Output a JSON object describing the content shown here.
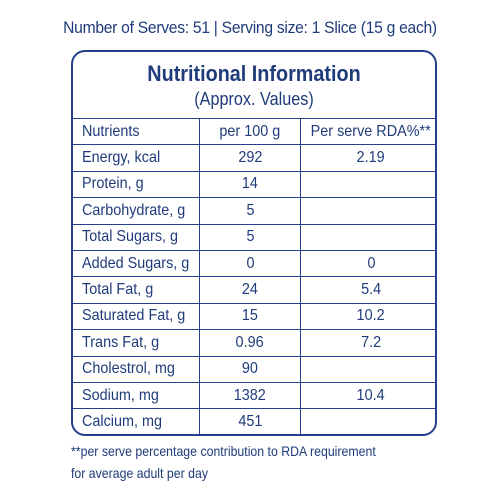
{
  "serves_line": "Number of Serves: 51 | Serving size: 1 Slice (15 g each)",
  "panel": {
    "title": "Nutritional Information",
    "subtitle": "(Approx. Values)"
  },
  "table": {
    "headers": [
      "Nutrients",
      "per 100 g",
      "Per serve RDA%**"
    ],
    "rows": [
      {
        "nutrient": "Energy, kcal",
        "per100": "292",
        "rda": "2.19"
      },
      {
        "nutrient": "Protein, g",
        "per100": "14",
        "rda": ""
      },
      {
        "nutrient": "Carbohydrate, g",
        "per100": "5",
        "rda": ""
      },
      {
        "nutrient": "Total Sugars, g",
        "per100": "5",
        "rda": ""
      },
      {
        "nutrient": "Added Sugars, g",
        "per100": "0",
        "rda": "0"
      },
      {
        "nutrient": "Total Fat, g",
        "per100": "24",
        "rda": "5.4"
      },
      {
        "nutrient": "Saturated Fat, g",
        "per100": "15",
        "rda": "10.2"
      },
      {
        "nutrient": "Trans Fat, g",
        "per100": "0.96",
        "rda": "7.2"
      },
      {
        "nutrient": "Cholestrol, mg",
        "per100": "90",
        "rda": ""
      },
      {
        "nutrient": "Sodium, mg",
        "per100": "1382",
        "rda": "10.4"
      },
      {
        "nutrient": "Calcium, mg",
        "per100": "451",
        "rda": ""
      }
    ]
  },
  "footnote": {
    "line1": "**per serve percentage contribution to RDA requirement",
    "line2": "for average adult per day"
  },
  "colors": {
    "text": "#1f3b7a",
    "border": "#24408a",
    "background": "#ffffff"
  }
}
